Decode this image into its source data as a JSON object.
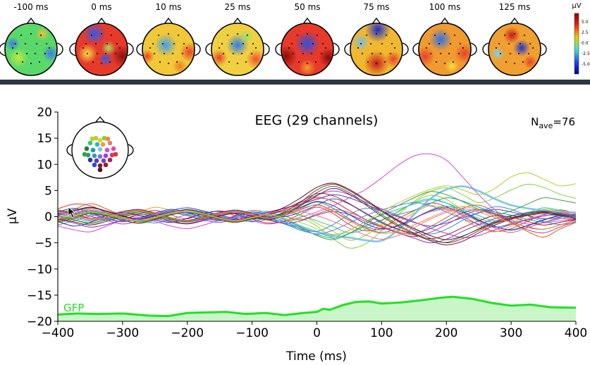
{
  "topomaps": {
    "times": [
      "-100 ms",
      "0 ms",
      "10 ms",
      "25 ms",
      "50 ms",
      "75 ms",
      "100 ms",
      "125 ms"
    ],
    "colorbar": {
      "unit": "µV",
      "ticks": [
        "5.0",
        "2.5",
        "0.0",
        "-2.5",
        "-5.0"
      ]
    }
  },
  "chart_data": {
    "type": "line",
    "title": "EEG (29 channels)",
    "nave_label": "N",
    "nave_sub": "ave",
    "nave_value": "=76",
    "xlabel": "Time (ms)",
    "ylabel": "µV",
    "xlim": [
      -400,
      400
    ],
    "ylim": [
      -20,
      20
    ],
    "xticks": [
      -400,
      -300,
      -200,
      -100,
      0,
      100,
      200,
      300,
      400
    ],
    "yticks": [
      20,
      15,
      10,
      5,
      0,
      -5,
      -10,
      -15,
      -20
    ],
    "gfp": {
      "name": "GFP",
      "color": "#22e122",
      "baseline": -20,
      "x": [
        -400,
        -370,
        -340,
        -300,
        -260,
        -230,
        -200,
        -170,
        -140,
        -110,
        -80,
        -50,
        -20,
        0,
        10,
        20,
        40,
        60,
        80,
        100,
        130,
        160,
        190,
        210,
        240,
        270,
        300,
        330,
        360,
        400
      ],
      "values": [
        -18.7,
        -18.5,
        -18.6,
        -18.5,
        -18.9,
        -19.0,
        -18.4,
        -18.3,
        -18.2,
        -18.6,
        -18.4,
        -18.8,
        -18.4,
        -18.2,
        -17.6,
        -17.8,
        -16.9,
        -16.3,
        -16.2,
        -16.6,
        -16.4,
        -16.0,
        -15.5,
        -15.3,
        -15.7,
        -16.5,
        -17.0,
        -16.8,
        -17.3,
        -17.4
      ]
    },
    "series": [
      {
        "color": "#e13232",
        "values": [
          1.5,
          2.4,
          2.1,
          0.8,
          -0.3,
          0.5,
          1.2,
          0.3,
          -0.4,
          0.6,
          1.0,
          0.2,
          -0.5,
          -1.2,
          -0.8,
          0.5,
          1.8,
          0.6,
          -1.5,
          -2.7,
          -2.2,
          -0.4,
          1.1,
          2.6,
          1.9,
          0.2,
          -1.6,
          -2.8,
          -2.3,
          -0.9,
          0.4,
          1.3,
          0.6
        ]
      },
      {
        "color": "#d0621e",
        "values": [
          0.8,
          1.4,
          2.5,
          1.5,
          0.2,
          -0.6,
          0.4,
          1.1,
          0.7,
          -0.2,
          -0.7,
          0.3,
          1.2,
          0.8,
          0.1,
          -0.6,
          0.5,
          1.4,
          0.8,
          -0.5,
          -1.8,
          -2.9,
          -3.3,
          -1.9,
          -0.2,
          1.6,
          2.2,
          0.9,
          -1.0,
          -2.8,
          -3.9,
          -2.4,
          -1.1
        ]
      },
      {
        "color": "#f0a020",
        "values": [
          -0.4,
          0.6,
          1.6,
          1.1,
          0.4,
          0.9,
          1.8,
          1.2,
          0.3,
          -0.5,
          0.2,
          1.0,
          0.6,
          -0.3,
          0.8,
          2.2,
          3.5,
          3.0,
          1.2,
          -0.6,
          -1.6,
          -1.0,
          0.7,
          2.1,
          1.4,
          -0.4,
          -2.1,
          -2.9,
          -1.8,
          -0.4,
          0.9,
          0.2,
          -0.8
        ]
      },
      {
        "color": "#b8c224",
        "values": [
          -1.2,
          -0.5,
          0.3,
          0.8,
          -0.2,
          -1.0,
          -0.4,
          0.6,
          1.3,
          0.7,
          -0.1,
          -0.8,
          -0.3,
          0.5,
          1.1,
          0.4,
          -1.3,
          -2.8,
          -4.5,
          -3.6,
          -1.4,
          0.8,
          2.7,
          4.1,
          3.3,
          1.2,
          -0.9,
          -2.0,
          -1.2,
          0.3,
          1.4,
          1.0,
          0.1
        ]
      },
      {
        "color": "#80d040",
        "values": [
          0.3,
          -0.6,
          -1.4,
          -0.9,
          0.1,
          0.7,
          0.2,
          -0.6,
          -1.0,
          -0.4,
          0.5,
          1.0,
          0.4,
          -0.7,
          -1.1,
          -0.4,
          -1.8,
          -4.2,
          -6.0,
          -5.2,
          -2.7,
          0.3,
          2.9,
          4.8,
          5.5,
          4.2,
          2.7,
          3.6,
          5.1,
          6.2,
          5.6,
          4.3,
          3.5
        ]
      },
      {
        "color": "#2ecc71",
        "values": [
          -0.7,
          0.1,
          0.9,
          0.4,
          -0.6,
          -1.3,
          -0.7,
          0.3,
          0.9,
          0.4,
          -0.4,
          -1.0,
          -0.5,
          0.4,
          0.9,
          0.2,
          -0.8,
          -1.9,
          -3.1,
          -2.4,
          -0.8,
          1.0,
          2.6,
          3.4,
          2.6,
          1.0,
          -0.3,
          -1.1,
          -0.4,
          0.7,
          1.7,
          1.2,
          0.6
        ]
      },
      {
        "color": "#1aa37a",
        "values": [
          1.1,
          0.4,
          -0.5,
          -0.2,
          0.8,
          1.3,
          0.6,
          -0.3,
          -0.9,
          -0.2,
          0.7,
          1.2,
          0.5,
          -0.2,
          0.4,
          1.6,
          2.8,
          1.6,
          -0.4,
          -2.1,
          -3.0,
          -2.2,
          -0.5,
          1.2,
          2.0,
          1.1,
          -0.6,
          -1.8,
          -2.6,
          -1.8,
          -0.7,
          0.2,
          -0.4
        ]
      },
      {
        "color": "#16a0a0",
        "values": [
          -0.2,
          0.5,
          1.2,
          0.6,
          -0.3,
          -0.9,
          -0.2,
          0.8,
          1.4,
          0.9,
          0.1,
          -0.6,
          -0.9,
          -0.3,
          -1.4,
          -2.6,
          -3.4,
          -4.1,
          -3.2,
          -1.8,
          -0.6,
          0.4,
          1.2,
          2.5,
          3.6,
          3.0,
          1.8,
          0.9,
          0.3,
          -0.5,
          -1.0,
          -0.4,
          0.2
        ]
      },
      {
        "color": "#26b8d8",
        "values": [
          0.6,
          -0.2,
          -0.9,
          -0.4,
          0.5,
          1.1,
          0.5,
          -0.4,
          -0.8,
          -0.1,
          0.8,
          1.3,
          0.7,
          -0.2,
          -1.0,
          -2.1,
          -3.0,
          -3.8,
          -2.6,
          -1.0,
          0.3,
          1.4,
          2.4,
          3.2,
          2.6,
          1.4,
          0.2,
          -0.8,
          -0.2,
          0.6,
          1.1,
          0.6,
          0.0
        ]
      },
      {
        "color": "#7ec8e0",
        "values": [
          -0.3,
          0.3,
          0.8,
          0.2,
          -0.5,
          -0.2,
          0.4,
          0.9,
          0.5,
          -0.3,
          -0.6,
          0.0,
          0.6,
          0.9,
          -0.4,
          -1.8,
          -2.9,
          -3.6,
          -4.0,
          -4.5,
          -4.6,
          -2.6,
          0.4,
          3.4,
          5.2,
          5.8,
          4.9,
          3.4,
          2.2,
          1.6,
          1.2,
          0.9,
          0.8
        ]
      },
      {
        "color": "#3a8ee0",
        "values": [
          -1.6,
          -0.8,
          0.1,
          0.6,
          0.0,
          -0.7,
          -1.2,
          -0.5,
          0.4,
          0.9,
          0.3,
          -0.4,
          -1.0,
          -0.6,
          -1.3,
          -2.3,
          -2.8,
          -1.5,
          0.4,
          1.6,
          1.0,
          -0.6,
          -2.2,
          -3.3,
          -2.4,
          -0.7,
          0.8,
          1.9,
          1.4,
          0.2,
          -0.9,
          -1.5,
          -1.1
        ]
      },
      {
        "color": "#2550d0",
        "values": [
          0.9,
          1.6,
          0.8,
          -0.3,
          -0.9,
          -0.3,
          0.7,
          1.4,
          0.8,
          -0.1,
          -0.7,
          0.1,
          0.9,
          0.4,
          0.0,
          0.9,
          2.2,
          3.4,
          2.4,
          0.6,
          -1.2,
          -2.4,
          -3.1,
          -2.3,
          -0.8,
          0.7,
          1.4,
          0.6,
          -0.9,
          -2.0,
          -2.4,
          -1.6,
          -0.6
        ]
      },
      {
        "color": "#3030a8",
        "values": [
          -0.9,
          -1.8,
          -1.1,
          0.2,
          0.8,
          0.3,
          -0.6,
          -1.1,
          -0.3,
          0.6,
          1.1,
          0.5,
          -0.4,
          -0.2,
          0.7,
          1.8,
          2.9,
          2.1,
          0.4,
          -1.3,
          -2.3,
          -1.8,
          -0.3,
          1.1,
          1.7,
          0.8,
          -0.7,
          -1.9,
          -2.5,
          -1.7,
          -0.6,
          0.1,
          -0.5
        ]
      },
      {
        "color": "#5a3ab8",
        "values": [
          0.3,
          1.0,
          1.7,
          1.0,
          0.1,
          -0.4,
          0.3,
          1.2,
          1.7,
          1.1,
          0.3,
          -0.3,
          0.2,
          0.9,
          1.6,
          2.4,
          3.3,
          4.2,
          3.6,
          2.4,
          1.1,
          0.0,
          -1.1,
          -1.8,
          -1.2,
          -0.2,
          0.7,
          1.4,
          0.9,
          0.2,
          -0.4,
          -0.1,
          0.5
        ]
      },
      {
        "color": "#7a3ad0",
        "values": [
          -0.5,
          -1.2,
          -2.0,
          -1.5,
          -0.6,
          0.2,
          -0.3,
          -1.0,
          -1.4,
          -0.8,
          0.1,
          0.6,
          0.1,
          -0.6,
          -1.3,
          -0.8,
          0.3,
          1.0,
          0.4,
          -0.9,
          -2.0,
          -3.1,
          -4.1,
          -5.0,
          -4.3,
          -2.8,
          -1.5,
          -0.4,
          0.2,
          0.8,
          1.1,
          0.7,
          0.3
        ]
      },
      {
        "color": "#a43ad8",
        "values": [
          0.2,
          0.8,
          0.1,
          -0.7,
          -1.4,
          -0.8,
          0.1,
          0.7,
          0.2,
          -0.6,
          -1.1,
          -0.4,
          0.3,
          0.8,
          1.6,
          2.7,
          4.1,
          4.9,
          4.2,
          2.8,
          1.5,
          0.2,
          -1.0,
          -2.2,
          -3.2,
          -4.0,
          -3.6,
          -2.5,
          -1.5,
          -0.6,
          0.1,
          0.5,
          0.1
        ]
      },
      {
        "color": "#d04ad8",
        "values": [
          -1.8,
          -2.5,
          -2.9,
          -1.8,
          -0.7,
          -0.2,
          -0.9,
          -1.8,
          -2.3,
          -1.6,
          -0.7,
          -0.2,
          -0.8,
          -1.4,
          -0.9,
          -0.1,
          0.9,
          2.1,
          3.6,
          5.2,
          7.4,
          9.8,
          11.6,
          12.0,
          10.8,
          7.6,
          4.2,
          1.3,
          -0.6,
          -1.4,
          -1.2,
          -0.8,
          -0.5
        ]
      },
      {
        "color": "#e04aa0",
        "values": [
          0.7,
          0.1,
          -0.7,
          -0.2,
          0.6,
          1.1,
          0.4,
          -0.5,
          -1.0,
          -0.4,
          0.4,
          0.9,
          0.3,
          -0.5,
          0.2,
          1.3,
          2.3,
          1.1,
          -0.6,
          -1.9,
          -2.5,
          -1.6,
          -0.3,
          0.9,
          1.4,
          0.5,
          -0.9,
          -2.2,
          -3.0,
          -2.1,
          -1.1,
          -0.3,
          -0.8
        ]
      },
      {
        "color": "#d03a70",
        "values": [
          -0.6,
          0.2,
          1.0,
          0.5,
          -0.3,
          -0.9,
          -0.3,
          0.5,
          1.0,
          0.4,
          -0.4,
          -0.9,
          -0.3,
          0.5,
          1.2,
          2.4,
          3.7,
          2.9,
          1.2,
          -0.5,
          -2.0,
          -3.1,
          -3.8,
          -3.0,
          -1.5,
          0.1,
          1.2,
          0.4,
          -1.2,
          -2.5,
          -3.1,
          -2.0,
          -0.9
        ]
      },
      {
        "color": "#a02850",
        "values": [
          1.3,
          0.6,
          -0.3,
          0.2,
          1.0,
          1.4,
          0.7,
          -0.2,
          -0.7,
          0.0,
          0.8,
          1.2,
          0.6,
          0.0,
          0.9,
          2.8,
          5.1,
          6.2,
          5.0,
          3.1,
          1.0,
          -0.9,
          -2.6,
          -4.1,
          -5.0,
          -4.2,
          -2.7,
          -1.3,
          -0.4,
          0.4,
          0.9,
          0.4,
          -0.2
        ]
      },
      {
        "color": "#7a1f3c",
        "values": [
          -0.3,
          -1.0,
          -1.6,
          -0.9,
          0.0,
          0.5,
          0.0,
          -0.8,
          -1.3,
          -0.6,
          0.2,
          0.7,
          0.1,
          -0.6,
          0.3,
          2.1,
          4.0,
          5.4,
          4.3,
          2.3,
          0.1,
          -1.8,
          -3.3,
          -4.6,
          -5.4,
          -4.7,
          -3.1,
          -1.6,
          -0.5,
          0.2,
          0.6,
          0.2,
          -0.3
        ]
      },
      {
        "color": "#5a1020",
        "values": [
          0.5,
          1.2,
          1.8,
          1.1,
          0.2,
          -0.5,
          0.1,
          0.9,
          1.3,
          0.7,
          -0.1,
          -0.6,
          0.0,
          0.6,
          1.8,
          3.6,
          5.6,
          6.4,
          5.2,
          3.3,
          1.2,
          -0.7,
          -2.3,
          -3.6,
          -4.4,
          -3.7,
          -2.4,
          -1.1,
          -0.2,
          0.4,
          0.8,
          0.3,
          -0.4
        ]
      },
      {
        "color": "#9b2020",
        "values": [
          -1.0,
          -0.3,
          0.6,
          0.1,
          -0.7,
          -1.2,
          -0.5,
          0.4,
          0.8,
          0.2,
          -0.6,
          -1.1,
          -0.4,
          0.3,
          1.4,
          2.9,
          4.4,
          4.0,
          2.5,
          0.7,
          -1.0,
          -2.4,
          -3.5,
          -4.2,
          -3.5,
          -2.1,
          -0.8,
          0.2,
          -0.1,
          -0.9,
          -1.6,
          -1.1,
          -0.5
        ]
      },
      {
        "color": "#2a7a30",
        "values": [
          0.1,
          -0.6,
          -1.2,
          -0.6,
          0.3,
          0.9,
          0.3,
          -0.5,
          -1.0,
          -0.3,
          0.6,
          1.0,
          0.4,
          -0.4,
          0.6,
          2.3,
          4.6,
          5.8,
          4.6,
          2.6,
          0.4,
          -1.5,
          -3.1,
          -4.4,
          -4.9,
          -3.8,
          -2.3,
          -0.9,
          0.1,
          0.7,
          1.0,
          0.5,
          0.0
        ]
      },
      {
        "color": "#40a040",
        "values": [
          -0.8,
          -0.1,
          0.7,
          0.3,
          -0.4,
          -0.9,
          -0.3,
          0.5,
          0.9,
          0.3,
          -0.5,
          -1.0,
          -0.3,
          0.4,
          -0.6,
          -2.0,
          -3.6,
          -4.4,
          -3.2,
          -1.4,
          0.5,
          2.1,
          3.6,
          4.8,
          4.2,
          2.9,
          1.4,
          0.5,
          1.1,
          2.4,
          3.6,
          3.2,
          2.6
        ]
      },
      {
        "color": "#6a7ad8",
        "values": [
          0.4,
          1.1,
          0.5,
          -0.4,
          -1.0,
          -0.4,
          0.5,
          1.2,
          0.7,
          -0.2,
          -0.8,
          -0.2,
          0.6,
          0.2,
          -0.9,
          -2.4,
          -3.3,
          -2.6,
          -1.2,
          0.2,
          1.3,
          2.1,
          2.7,
          2.1,
          0.9,
          -0.4,
          -1.4,
          -2.0,
          -1.4,
          -0.5,
          0.3,
          0.1,
          -0.3
        ]
      },
      {
        "color": "#e07a8a",
        "values": [
          -0.1,
          0.6,
          1.4,
          0.8,
          -0.1,
          -0.6,
          0.0,
          0.8,
          1.2,
          0.6,
          -0.2,
          -0.7,
          -0.1,
          0.6,
          1.3,
          1.0,
          0.2,
          -0.9,
          -2.2,
          -3.5,
          -4.3,
          -3.6,
          -2.1,
          -0.5,
          0.8,
          1.5,
          0.9,
          -0.2,
          -1.0,
          -0.5,
          0.4,
          0.9,
          0.5
        ]
      },
      {
        "color": "#f08a30",
        "values": [
          0.9,
          0.3,
          -0.5,
          -0.1,
          0.7,
          1.2,
          0.5,
          -0.3,
          -0.8,
          -0.2,
          0.6,
          1.0,
          0.4,
          -0.3,
          0.3,
          1.5,
          2.2,
          1.0,
          -0.8,
          -2.3,
          -3.2,
          -2.8,
          -1.6,
          -0.2,
          1.1,
          1.9,
          1.3,
          0.1,
          -1.1,
          -1.9,
          -2.4,
          -1.6,
          -0.7
        ]
      },
      {
        "color": "#b0d030",
        "values": [
          -0.4,
          0.2,
          0.9,
          0.5,
          -0.3,
          -0.8,
          -0.2,
          0.6,
          1.0,
          0.5,
          -0.3,
          -0.8,
          -0.2,
          0.4,
          -0.3,
          -1.1,
          -2.3,
          -3.4,
          -2.6,
          -0.9,
          0.9,
          2.6,
          4.0,
          5.2,
          5.9,
          5.1,
          4.2,
          5.4,
          7.6,
          8.4,
          7.2,
          5.9,
          6.3
        ]
      }
    ]
  }
}
